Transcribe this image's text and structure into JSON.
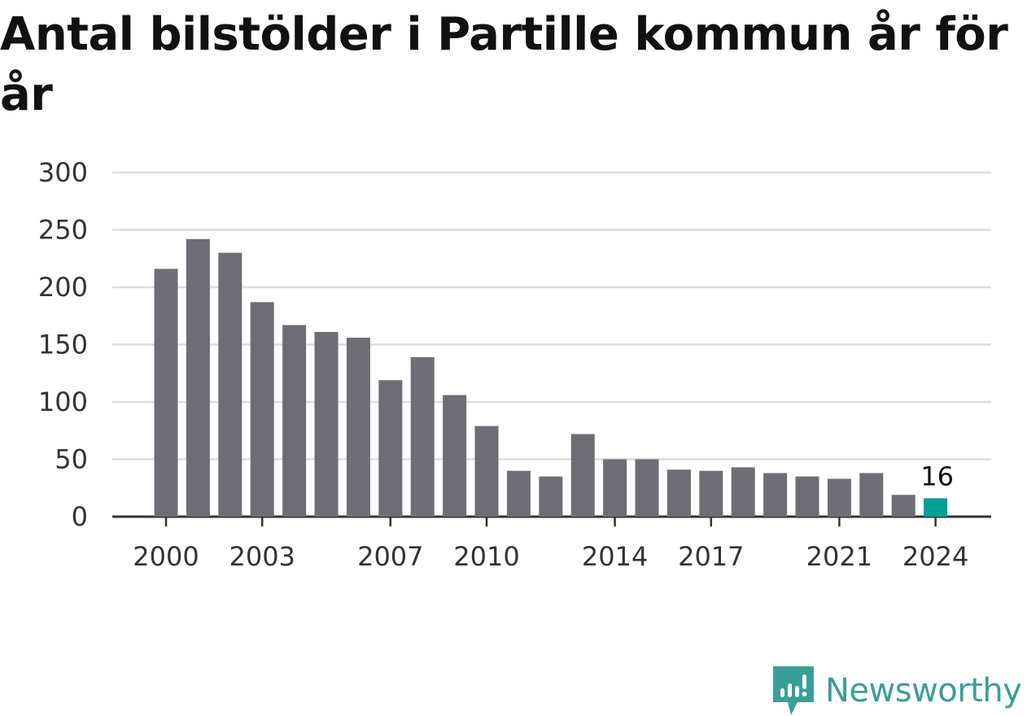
{
  "chart_data": {
    "type": "bar",
    "title": "Antal bilstölder i Partille kommun år för år",
    "xlabel": "",
    "ylabel": "",
    "categories": [
      "2000",
      "2001",
      "2002",
      "2003",
      "2004",
      "2005",
      "2006",
      "2007",
      "2008",
      "2009",
      "2010",
      "2011",
      "2012",
      "2013",
      "2014",
      "2015",
      "2016",
      "2017",
      "2018",
      "2019",
      "2020",
      "2021",
      "2022",
      "2023",
      "2024"
    ],
    "values": [
      216,
      242,
      230,
      187,
      167,
      161,
      156,
      119,
      139,
      106,
      79,
      40,
      35,
      72,
      50,
      50,
      41,
      40,
      43,
      38,
      35,
      33,
      38,
      19,
      16
    ],
    "ylim": [
      0,
      300
    ],
    "yticks": [
      "0",
      "50",
      "100",
      "150",
      "200",
      "250",
      "300"
    ],
    "xtick_labels": [
      "2000",
      "2003",
      "2007",
      "2010",
      "2014",
      "2017",
      "2021",
      "2024"
    ],
    "highlight": {
      "category": "2024",
      "label": "16"
    },
    "grid": true,
    "colors": {
      "bar": "#6e6d73",
      "highlight": "#00a194",
      "grid": "#dcdcdc",
      "axis": "#333333"
    }
  },
  "brand": {
    "name": "Newsworthy",
    "icon": "newsworthy-logo-icon",
    "color": "#3a9e98"
  }
}
